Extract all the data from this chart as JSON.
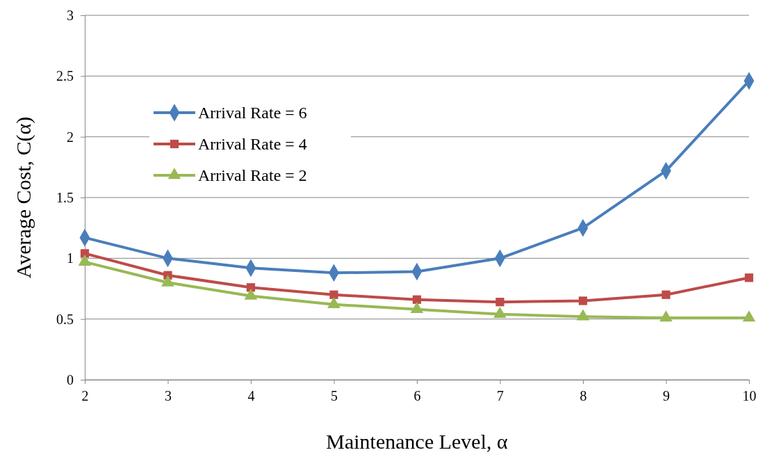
{
  "chart_data": {
    "type": "line",
    "xlabel": "Maintenance Level, α",
    "ylabel": "Average Cost, C(α)",
    "x": [
      2,
      3,
      4,
      5,
      6,
      7,
      8,
      9,
      10
    ],
    "xlim": [
      2,
      10
    ],
    "xticks": [
      2,
      3,
      4,
      5,
      6,
      7,
      8,
      9,
      10
    ],
    "ylim": [
      0,
      3
    ],
    "yticks": [
      0,
      0.5,
      1,
      1.5,
      2,
      2.5,
      3
    ],
    "grid": "y",
    "legend": "top left",
    "line_style": "solid",
    "series": [
      {
        "name": "Arrival Rate = 6",
        "color": "#4a7ebb",
        "marker": "diamond",
        "values": [
          1.17,
          1.0,
          0.92,
          0.88,
          0.89,
          1.0,
          1.25,
          1.72,
          2.46
        ]
      },
      {
        "name": "Arrival Rate = 4",
        "color": "#be4b48",
        "marker": "square",
        "values": [
          1.04,
          0.86,
          0.76,
          0.7,
          0.66,
          0.64,
          0.65,
          0.7,
          0.84
        ]
      },
      {
        "name": "Arrival Rate = 2",
        "color": "#98b954",
        "marker": "triangle",
        "values": [
          0.97,
          0.8,
          0.69,
          0.62,
          0.58,
          0.54,
          0.52,
          0.51,
          0.51
        ]
      }
    ]
  }
}
